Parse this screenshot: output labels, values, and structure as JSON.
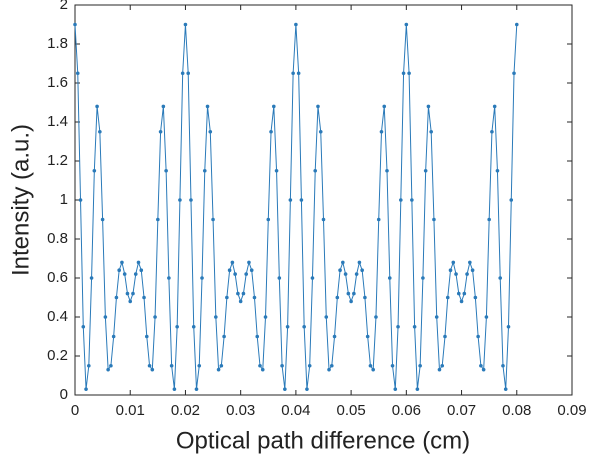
{
  "chart_data": {
    "type": "line",
    "xlabel": "Optical path difference (cm)",
    "ylabel": "Intensity (a.u.)",
    "color": "#2a7ab9",
    "xlim": [
      0,
      0.09
    ],
    "xticks": [
      0,
      0.01,
      0.02,
      0.03,
      0.04,
      0.05,
      0.06,
      0.07,
      0.08,
      0.09
    ],
    "ylim": [
      0,
      2
    ],
    "yticks": [
      0,
      0.2,
      0.4,
      0.6,
      0.8,
      1,
      1.2,
      1.4,
      1.6,
      1.8,
      2
    ],
    "x": [
      0,
      0.0005,
      0.001,
      0.0015,
      0.002,
      0.0025,
      0.003,
      0.0035,
      0.004,
      0.0045,
      0.005,
      0.0055,
      0.006,
      0.0065,
      0.007,
      0.0075,
      0.008,
      0.0085,
      0.009,
      0.0095,
      0.01,
      0.0105,
      0.011,
      0.0115,
      0.012,
      0.0125,
      0.013,
      0.0135,
      0.014,
      0.0145,
      0.015,
      0.0155,
      0.016,
      0.0165,
      0.017,
      0.0175,
      0.018,
      0.0185,
      0.019,
      0.0195,
      0.02,
      0.0205,
      0.021,
      0.0215,
      0.022,
      0.0225,
      0.023,
      0.0235,
      0.024,
      0.0245,
      0.025,
      0.0255,
      0.026,
      0.0265,
      0.027,
      0.0275,
      0.028,
      0.0285,
      0.029,
      0.0295,
      0.03,
      0.0305,
      0.031,
      0.0315,
      0.032,
      0.0325,
      0.033,
      0.0335,
      0.034,
      0.0345,
      0.035,
      0.0355,
      0.036,
      0.0365,
      0.037,
      0.0375,
      0.038,
      0.0385,
      0.039,
      0.0395,
      0.04,
      0.0405,
      0.041,
      0.0415,
      0.042,
      0.0425,
      0.043,
      0.0435,
      0.044,
      0.0445,
      0.045,
      0.0455,
      0.046,
      0.0465,
      0.047,
      0.0475,
      0.048,
      0.0485,
      0.049,
      0.0495,
      0.05,
      0.0505,
      0.051,
      0.0515,
      0.052,
      0.0525,
      0.053,
      0.0535,
      0.054,
      0.0545,
      0.055,
      0.0555,
      0.056,
      0.0565,
      0.057,
      0.0575,
      0.058,
      0.0585,
      0.059,
      0.0595,
      0.06,
      0.0605,
      0.061,
      0.0615,
      0.062,
      0.0625,
      0.063,
      0.0635,
      0.064,
      0.0645,
      0.065,
      0.0655,
      0.066,
      0.0665,
      0.067,
      0.0675,
      0.068,
      0.0685,
      0.069,
      0.0695,
      0.07,
      0.0705,
      0.071,
      0.0715,
      0.072,
      0.0725,
      0.073,
      0.0735,
      0.074,
      0.0745,
      0.075,
      0.0755,
      0.076,
      0.0765,
      0.077,
      0.0775,
      0.078,
      0.0785,
      0.079,
      0.0795,
      0.08
    ],
    "values": [
      1.9,
      1.65,
      1.0,
      0.35,
      0.03,
      0.15,
      0.6,
      1.15,
      1.48,
      1.35,
      0.9,
      0.4,
      0.13,
      0.15,
      0.3,
      0.5,
      0.64,
      0.68,
      0.62,
      0.52,
      0.48,
      0.52,
      0.62,
      0.68,
      0.64,
      0.5,
      0.3,
      0.15,
      0.13,
      0.4,
      0.9,
      1.35,
      1.48,
      1.15,
      0.6,
      0.15,
      0.03,
      0.35,
      1.0,
      1.65,
      1.9,
      1.65,
      1.0,
      0.35,
      0.03,
      0.15,
      0.6,
      1.15,
      1.48,
      1.35,
      0.9,
      0.4,
      0.13,
      0.15,
      0.3,
      0.5,
      0.64,
      0.68,
      0.62,
      0.52,
      0.48,
      0.52,
      0.62,
      0.68,
      0.64,
      0.5,
      0.3,
      0.15,
      0.13,
      0.4,
      0.9,
      1.35,
      1.48,
      1.15,
      0.6,
      0.15,
      0.03,
      0.35,
      1.0,
      1.65,
      1.9,
      1.65,
      1.0,
      0.35,
      0.03,
      0.15,
      0.6,
      1.15,
      1.48,
      1.35,
      0.9,
      0.4,
      0.13,
      0.15,
      0.3,
      0.5,
      0.64,
      0.68,
      0.62,
      0.52,
      0.48,
      0.52,
      0.62,
      0.68,
      0.64,
      0.5,
      0.3,
      0.15,
      0.13,
      0.4,
      0.9,
      1.35,
      1.48,
      1.15,
      0.6,
      0.15,
      0.03,
      0.35,
      1.0,
      1.65,
      1.9,
      1.65,
      1.0,
      0.35,
      0.03,
      0.15,
      0.6,
      1.15,
      1.48,
      1.35,
      0.9,
      0.4,
      0.13,
      0.15,
      0.3,
      0.5,
      0.64,
      0.68,
      0.62,
      0.52,
      0.48,
      0.52,
      0.62,
      0.68,
      0.64,
      0.5,
      0.3,
      0.15,
      0.13,
      0.4,
      0.9,
      1.35,
      1.48,
      1.15,
      0.6,
      0.15,
      0.03,
      0.35,
      1.0,
      1.65,
      1.9
    ]
  }
}
